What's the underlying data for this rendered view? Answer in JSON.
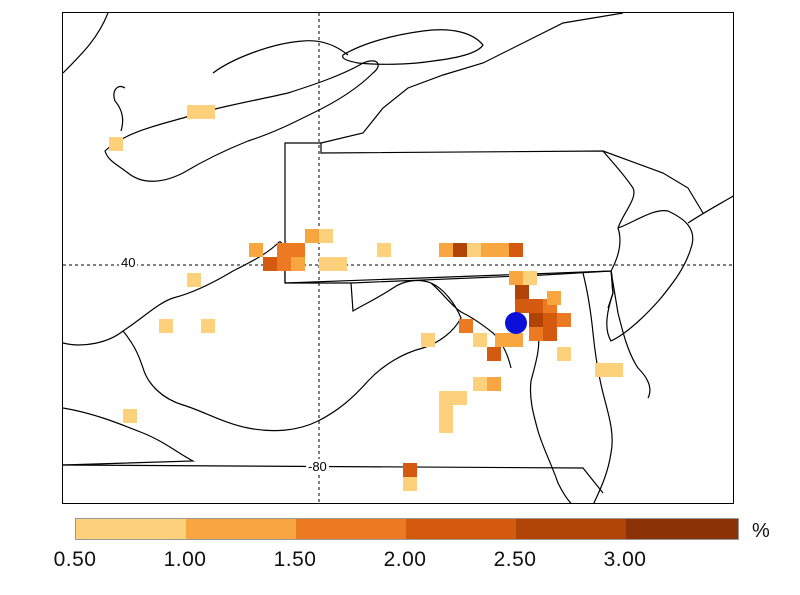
{
  "map": {
    "grid_lines": {
      "lat_label": "40",
      "lon_label": "-80"
    },
    "site_marker_color": "#0a10d8"
  },
  "legend": {
    "unit": "%",
    "ticks": [
      "0.50",
      "1.00",
      "1.50",
      "2.00",
      "2.50",
      "3.00"
    ],
    "colors": [
      "#fdd17b",
      "#f8a640",
      "#ec7a22",
      "#d45a10",
      "#b04306",
      "#8a3205",
      "#6e2502"
    ]
  }
}
